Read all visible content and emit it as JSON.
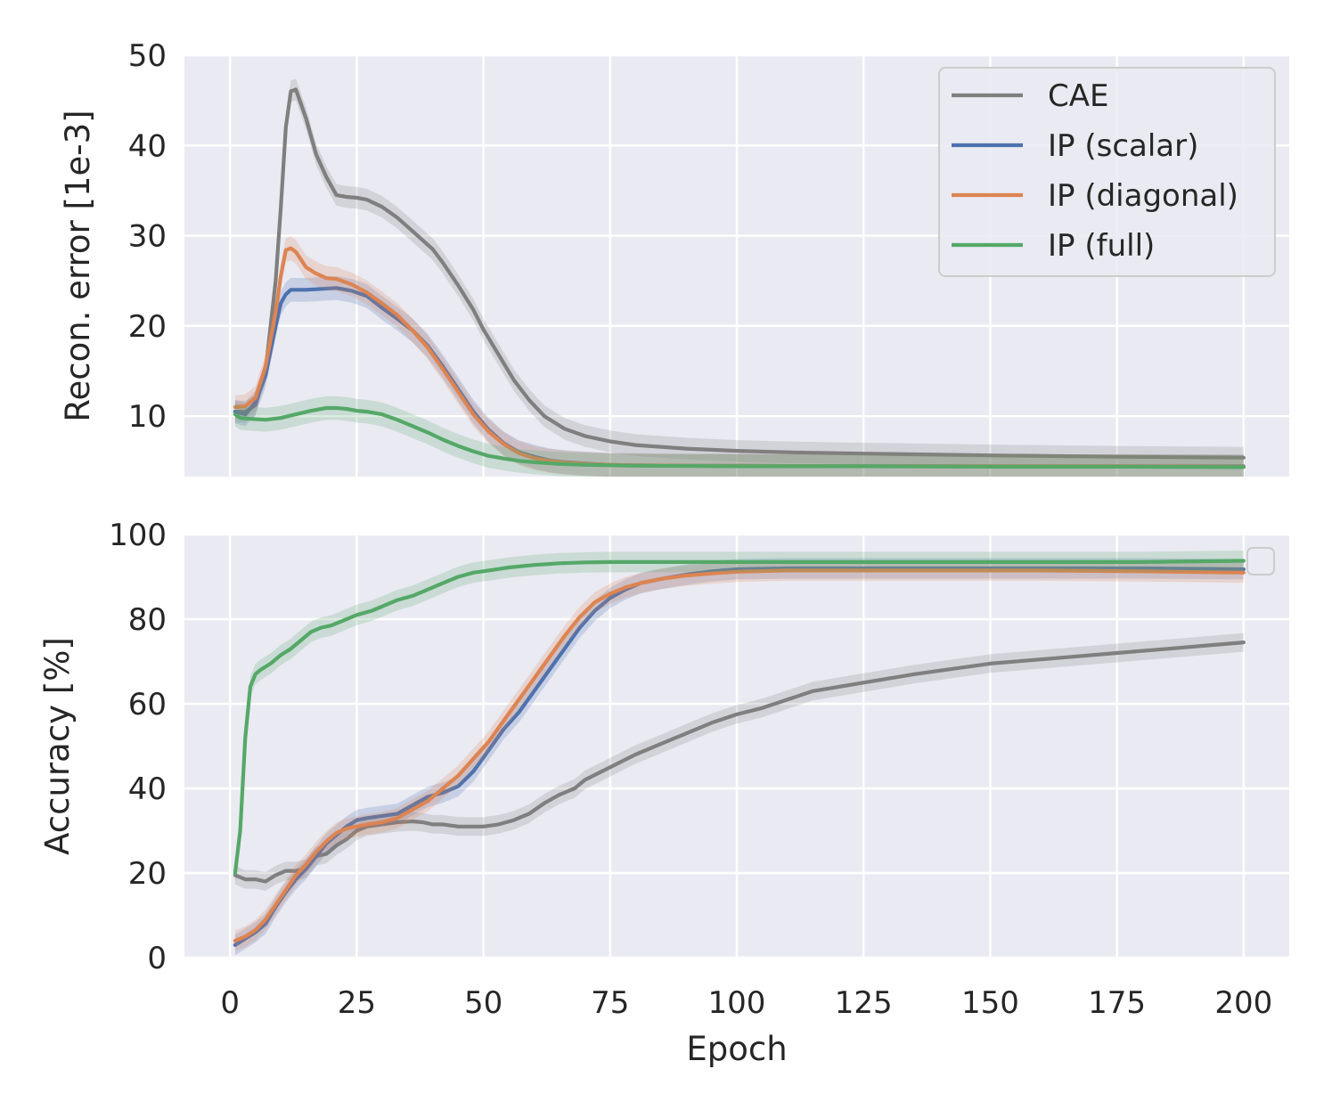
{
  "chart_data": [
    {
      "type": "line",
      "ylabel": "Recon. error [1e-3]",
      "xlabel": "",
      "xlim": [
        -9,
        209
      ],
      "ylim": [
        3.3,
        50
      ],
      "xticks": [
        0,
        25,
        50,
        75,
        100,
        125,
        150,
        175,
        200
      ],
      "yticks": [
        10,
        20,
        30,
        40,
        50
      ],
      "show_xtick_labels": false,
      "grid": true,
      "legend": "top-right",
      "series": [
        {
          "name": "CAE",
          "color": "#7f7f7f",
          "x": [
            1,
            3,
            5,
            7,
            9,
            10,
            11,
            12,
            13,
            15,
            17,
            19,
            21,
            23,
            25,
            27,
            30,
            33,
            35,
            38,
            40,
            42,
            45,
            48,
            50,
            53,
            56,
            59,
            62,
            66,
            70,
            75,
            80,
            90,
            100,
            110,
            125,
            150,
            175,
            200
          ],
          "y": [
            10.5,
            10.5,
            11.2,
            15,
            25,
            33,
            42,
            46,
            46.2,
            43,
            39,
            36.5,
            34.5,
            34.3,
            34.2,
            34,
            33.2,
            32,
            31,
            29.5,
            28.5,
            27,
            24.5,
            21.8,
            19.6,
            16.8,
            14,
            11.8,
            10,
            8.6,
            7.8,
            7.2,
            6.8,
            6.4,
            6.15,
            6.0,
            5.85,
            5.65,
            5.5,
            5.4
          ]
        },
        {
          "name": "IP (scalar)",
          "color": "#4c72b0",
          "x": [
            1,
            3,
            5,
            7,
            9,
            10,
            11,
            12,
            13,
            15,
            18,
            21,
            24,
            27,
            30,
            33,
            36,
            39,
            42,
            45,
            48,
            51,
            54,
            57,
            60,
            63,
            66,
            70,
            75,
            80,
            90,
            100,
            125,
            150,
            175,
            200
          ],
          "y": [
            10.5,
            10.2,
            11.5,
            14.5,
            20,
            22.5,
            23.5,
            24,
            24,
            24,
            24.1,
            24.2,
            23.9,
            23.3,
            22,
            20.8,
            19.5,
            17.8,
            15.5,
            13,
            10.5,
            8.5,
            7,
            6,
            5.5,
            5.1,
            4.9,
            4.75,
            4.6,
            4.55,
            4.5,
            4.5,
            4.45,
            4.45,
            4.45,
            4.45
          ]
        },
        {
          "name": "IP (diagonal)",
          "color": "#dd8452",
          "x": [
            1,
            3,
            5,
            7,
            9,
            10,
            11,
            12,
            13,
            15,
            17,
            19,
            21,
            24,
            27,
            30,
            33,
            36,
            39,
            42,
            45,
            48,
            51,
            54,
            57,
            60,
            63,
            66,
            70,
            75,
            80,
            90,
            100,
            125,
            150,
            175,
            200
          ],
          "y": [
            11,
            11.1,
            12,
            15.5,
            21.5,
            25.5,
            28.4,
            28.6,
            28.2,
            26.5,
            25.8,
            25.3,
            25.2,
            24.6,
            23.7,
            22.5,
            21.2,
            19.5,
            17.6,
            15.2,
            12.7,
            10.2,
            8.3,
            6.9,
            5.9,
            5.35,
            5.05,
            4.85,
            4.7,
            4.6,
            4.55,
            4.5,
            4.5,
            4.45,
            4.45,
            4.45,
            4.4
          ]
        },
        {
          "name": "IP (full)",
          "color": "#55a868",
          "x": [
            1,
            2,
            4,
            7,
            10,
            13,
            16,
            19,
            21,
            23,
            25,
            27,
            30,
            33,
            36,
            39,
            42,
            45,
            48,
            51,
            54,
            57,
            60,
            65,
            70,
            80,
            100,
            125,
            150,
            175,
            200
          ],
          "y": [
            10.2,
            9.8,
            9.7,
            9.6,
            9.8,
            10.2,
            10.6,
            10.9,
            10.9,
            10.8,
            10.6,
            10.5,
            10.2,
            9.6,
            8.9,
            8.2,
            7.4,
            6.7,
            6.1,
            5.6,
            5.3,
            5.05,
            4.9,
            4.7,
            4.6,
            4.5,
            4.45,
            4.45,
            4.4,
            4.4,
            4.35
          ]
        }
      ]
    },
    {
      "type": "line",
      "ylabel": "Accuracy [%]",
      "xlabel": "Epoch",
      "xlim": [
        -9,
        209
      ],
      "ylim": [
        0,
        100
      ],
      "xticks": [
        0,
        25,
        50,
        75,
        100,
        125,
        150,
        175,
        200
      ],
      "yticks": [
        0,
        20,
        40,
        60,
        80,
        100
      ],
      "show_xtick_labels": true,
      "grid": true,
      "legend": "top-right (empty)",
      "series": [
        {
          "name": "CAE",
          "color": "#7f7f7f",
          "x": [
            1,
            3,
            5,
            7,
            9,
            11,
            13,
            15,
            17,
            19,
            21,
            23,
            25,
            27,
            30,
            33,
            36,
            38,
            40,
            42,
            45,
            48,
            50,
            53,
            56,
            59,
            62,
            65,
            68,
            70,
            75,
            80,
            85,
            90,
            95,
            100,
            105,
            110,
            115,
            125,
            135,
            150,
            165,
            175,
            185,
            195,
            200
          ],
          "y": [
            19.5,
            18.5,
            18.5,
            18,
            19.5,
            20.5,
            20.5,
            21,
            24,
            24.5,
            26.5,
            28,
            30,
            31,
            31.5,
            32,
            32.2,
            32,
            31.5,
            31.5,
            31,
            31,
            31,
            31.5,
            32.5,
            34,
            36.5,
            38.5,
            40,
            42,
            45,
            48,
            50.5,
            53,
            55.5,
            57.5,
            59,
            61,
            63,
            65,
            67,
            69.5,
            71,
            72,
            73,
            74,
            74.5
          ]
        },
        {
          "name": "IP (scalar)",
          "color": "#4c72b0",
          "x": [
            1,
            3,
            5,
            7,
            9,
            11,
            13,
            15,
            17,
            19,
            21,
            23,
            25,
            27,
            30,
            33,
            36,
            39,
            42,
            45,
            48,
            51,
            54,
            57,
            60,
            63,
            66,
            69,
            72,
            75,
            78,
            81,
            85,
            90,
            95,
            100,
            110,
            120,
            140,
            160,
            180,
            200
          ],
          "y": [
            3,
            4.5,
            6,
            8,
            12,
            15.5,
            18.5,
            21,
            24,
            27,
            29,
            31,
            32.5,
            33,
            33.5,
            34,
            36,
            38,
            39,
            40.5,
            44,
            49,
            54,
            58,
            63,
            68,
            73,
            78,
            82,
            85,
            87,
            88.5,
            89.5,
            90.5,
            91.3,
            91.8,
            92,
            92,
            92,
            92,
            92,
            91.8
          ]
        },
        {
          "name": "IP (diagonal)",
          "color": "#dd8452",
          "x": [
            1,
            3,
            5,
            7,
            9,
            11,
            13,
            15,
            17,
            19,
            21,
            23,
            25,
            27,
            30,
            33,
            36,
            39,
            42,
            45,
            48,
            51,
            54,
            57,
            60,
            63,
            66,
            69,
            72,
            75,
            78,
            81,
            85,
            90,
            95,
            100,
            110,
            120,
            140,
            160,
            180,
            200
          ],
          "y": [
            4,
            5,
            6.5,
            9,
            12.5,
            16,
            19.5,
            22,
            25,
            27.5,
            29.5,
            30.5,
            31,
            31.5,
            32,
            33,
            35,
            37,
            40,
            43,
            47,
            51,
            56,
            61,
            66,
            71,
            76,
            80.5,
            84,
            86,
            87.5,
            88.5,
            89.5,
            90.3,
            90.8,
            91.2,
            91.5,
            91.5,
            91.5,
            91.5,
            91.3,
            91
          ]
        },
        {
          "name": "IP (full)",
          "color": "#55a868",
          "x": [
            1,
            2,
            3,
            4,
            5,
            6,
            8,
            10,
            12,
            14,
            16,
            18,
            20,
            22,
            25,
            28,
            30,
            33,
            36,
            39,
            42,
            45,
            48,
            51,
            55,
            60,
            65,
            70,
            75,
            80,
            90,
            100,
            120,
            140,
            160,
            180,
            200
          ],
          "y": [
            20,
            30,
            52,
            64,
            67,
            68,
            69.5,
            71.5,
            73,
            75,
            77,
            78,
            78.5,
            79.5,
            81,
            82,
            83,
            84.5,
            85.5,
            87,
            88.5,
            90,
            91,
            91.5,
            92.2,
            92.8,
            93.2,
            93.4,
            93.5,
            93.5,
            93.5,
            93.5,
            93.5,
            93.5,
            93.5,
            93.5,
            93.8
          ]
        }
      ]
    }
  ]
}
